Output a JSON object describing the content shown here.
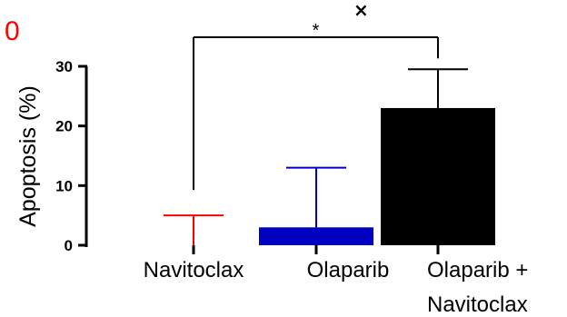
{
  "figure": {
    "panel_label": "0",
    "panel_label_color": "#ff0000",
    "close_icon": "close-icon",
    "close_symbol": "×"
  },
  "chart_data": {
    "type": "bar",
    "ylabel": "Apoptosis (%)",
    "xlabel": "",
    "ylim": [
      0,
      30
    ],
    "yticks": [
      0,
      10,
      20,
      30
    ],
    "ytick_labels": [
      "0",
      "10",
      "20",
      "30"
    ],
    "categories": [
      "Navitoclax",
      "Olaparib",
      "Olaparib +\nNavitoclax"
    ],
    "category_lines": [
      [
        "Navitoclax"
      ],
      [
        "Olaparib"
      ],
      [
        "Olaparib +",
        "Navitoclax"
      ]
    ],
    "values": [
      0,
      3,
      23
    ],
    "errors": [
      5,
      10,
      6.5
    ],
    "colors": [
      "#ff0000",
      "#0000c0",
      "#000000"
    ],
    "grid": false,
    "significance": {
      "from": 0,
      "to": 2,
      "label": "*"
    }
  }
}
